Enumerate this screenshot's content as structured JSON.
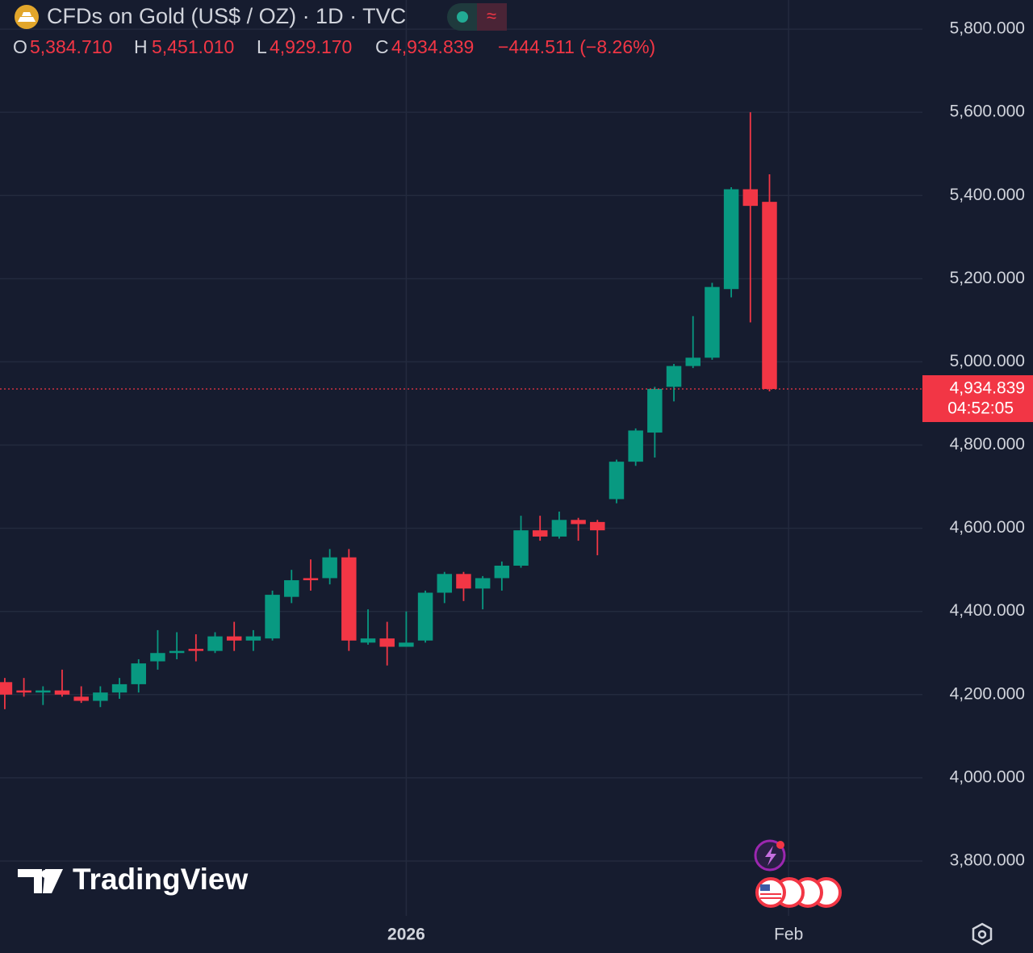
{
  "chart_data": {
    "type": "candlestick",
    "title": "CFDs on Gold (US$ / OZ) · 1D · TVC",
    "legend": {
      "o_label": "O",
      "open": "5,384.710",
      "h_label": "H",
      "high": "5,451.010",
      "l_label": "L",
      "low": "4,929.170",
      "c_label": "C",
      "close": "4,934.839",
      "change": "−444.511 (−8.26%)"
    },
    "last_price_label": "4,934.839",
    "countdown": "04:52:05",
    "watermark": "TradingView",
    "categories": [
      null,
      null,
      null,
      null,
      null,
      null,
      null,
      null,
      null,
      null,
      null,
      null,
      null,
      null,
      null,
      null,
      null,
      null,
      null,
      null,
      null,
      null,
      null,
      null,
      null,
      null,
      null,
      null,
      null,
      null,
      null,
      null,
      null,
      null,
      null,
      null,
      null,
      null,
      null,
      null,
      null
    ],
    "open": [
      4230,
      4210,
      4205,
      4210,
      4195,
      4185,
      4205,
      4225,
      4280,
      4300,
      4310,
      4305,
      4340,
      4330,
      4335,
      4435,
      4480,
      4480,
      4530,
      4325,
      4335,
      4315,
      4330,
      4445,
      4490,
      4455,
      4480,
      4510,
      4595,
      4580,
      4620,
      4615,
      4670,
      4760,
      4830,
      4940,
      4990,
      5010,
      5175,
      5415,
      5384.71
    ],
    "high": [
      4240,
      4240,
      4220,
      4260,
      4220,
      4220,
      4240,
      4285,
      4355,
      4350,
      4345,
      4350,
      4375,
      4355,
      4450,
      4500,
      4525,
      4550,
      4550,
      4405,
      4375,
      4400,
      4450,
      4495,
      4495,
      4485,
      4520,
      4630,
      4630,
      4640,
      4625,
      4620,
      4765,
      4840,
      4940,
      4995,
      5110,
      5190,
      5420,
      5600,
      5451.01
    ],
    "low": [
      4165,
      4195,
      4175,
      4195,
      4180,
      4170,
      4190,
      4205,
      4260,
      4285,
      4280,
      4300,
      4305,
      4305,
      4330,
      4420,
      4450,
      4465,
      4305,
      4320,
      4270,
      4315,
      4325,
      4420,
      4425,
      4405,
      4450,
      4505,
      4570,
      4575,
      4570,
      4535,
      4660,
      4750,
      4770,
      4905,
      4985,
      5005,
      5155,
      5095,
      4929.17
    ],
    "close": [
      4200,
      4205,
      4210,
      4200,
      4185,
      4205,
      4225,
      4275,
      4300,
      4305,
      4305,
      4340,
      4330,
      4340,
      4440,
      4475,
      4475,
      4530,
      4330,
      4335,
      4315,
      4325,
      4445,
      4490,
      4455,
      4480,
      4510,
      4595,
      4580,
      4620,
      4610,
      4595,
      4760,
      4835,
      4935,
      4990,
      5010,
      5180,
      5415,
      5375,
      4934.839
    ],
    "up_color": "#089981",
    "down_color": "#f23645",
    "ylim": [
      3668,
      5870
    ],
    "yticks": [
      {
        "value": 3800,
        "label": "3,800.000"
      },
      {
        "value": 4000,
        "label": "4,000.000"
      },
      {
        "value": 4200,
        "label": "4,200.000"
      },
      {
        "value": 4400,
        "label": "4,400.000"
      },
      {
        "value": 4600,
        "label": "4,600.000"
      },
      {
        "value": 4800,
        "label": "4,800.000"
      },
      {
        "value": 5000,
        "label": "5,000.000"
      },
      {
        "value": 5200,
        "label": "5,200.000"
      },
      {
        "value": 5400,
        "label": "5,400.000"
      },
      {
        "value": 5600,
        "label": "5,600.000"
      },
      {
        "value": 5800,
        "label": "5,800.000"
      }
    ],
    "xlim": [
      -0.25,
      48
    ],
    "xticks": [
      {
        "value": 21,
        "label": "2026"
      },
      {
        "value": 41,
        "label": "Feb"
      }
    ],
    "grid": true
  }
}
